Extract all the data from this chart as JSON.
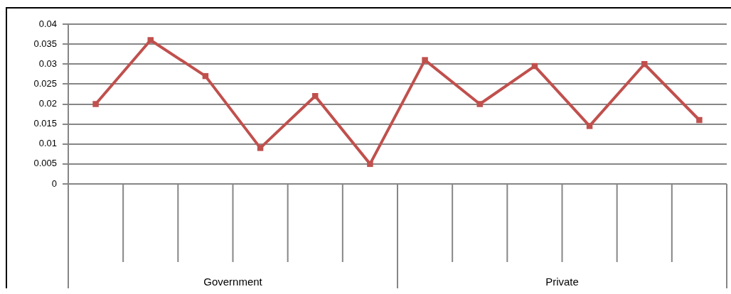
{
  "chart_data": {
    "type": "line",
    "categories": [
      null,
      null,
      null,
      null,
      null,
      null,
      null,
      null,
      null,
      null,
      null,
      null
    ],
    "series": [
      {
        "color": "#c0504d",
        "values": [
          0.02,
          0.036,
          0.027,
          0.009,
          0.022,
          0.005,
          0.031,
          0.02,
          0.0295,
          0.0145,
          0.03,
          0.016
        ]
      }
    ],
    "annotations": [
      "Government",
      "Private"
    ],
    "ylim": [
      0,
      0.04
    ],
    "yticks": [
      0,
      0.005,
      0.01,
      0.015,
      0.02,
      0.025,
      0.03,
      0.035,
      0.04
    ],
    "grid": "y",
    "marker": "square",
    "line_style": "solid",
    "legend": false
  }
}
